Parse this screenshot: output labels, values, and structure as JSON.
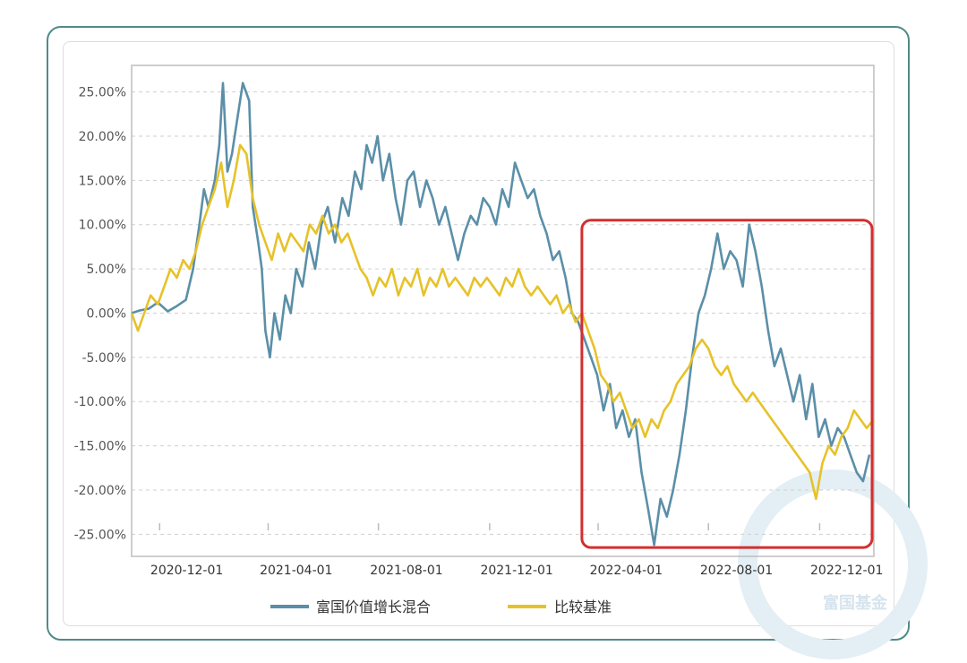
{
  "colors": {
    "fund": "#5b8fa8",
    "benchmark": "#e6c229",
    "highlight": "#d32f2f",
    "frame": "#4f8a8b"
  },
  "watermark": {
    "text": "富国基金"
  },
  "chart_data": {
    "type": "line",
    "title": "",
    "xlabel": "",
    "ylabel": "",
    "ylim": [
      -27.5,
      28
    ],
    "yticks": [
      25,
      20,
      15,
      10,
      5,
      0,
      -5,
      -10,
      -15,
      -20,
      -25
    ],
    "ytick_labels": [
      "25.00%",
      "20.00%",
      "15.00%",
      "10.00%",
      "5.00%",
      "0.00%",
      "-5.00%",
      "-10.00%",
      "-15.00%",
      "-20.00%",
      "-25.00%"
    ],
    "xlim": [
      "2020-10-01",
      "2022-12-31"
    ],
    "xticks": [
      "2020-12-01",
      "2021-04-01",
      "2021-08-01",
      "2021-12-01",
      "2022-04-01",
      "2022-08-01",
      "2022-12-01"
    ],
    "legend_position": "bottom",
    "grid": true,
    "highlight_region": {
      "x_start": "2022-02-15",
      "x_end": "2022-12-31",
      "y_min": -26.5,
      "y_max": 10.5
    },
    "series": [
      {
        "name": "富国价值增长混合",
        "color": "#5b8fa8",
        "points": [
          [
            "2020-10-01",
            0
          ],
          [
            "2020-10-10",
            0.3
          ],
          [
            "2020-10-20",
            0.5
          ],
          [
            "2020-10-30",
            1.2
          ],
          [
            "2020-11-10",
            0.2
          ],
          [
            "2020-11-20",
            0.8
          ],
          [
            "2020-11-30",
            1.5
          ],
          [
            "2020-12-08",
            5
          ],
          [
            "2020-12-15",
            10
          ],
          [
            "2020-12-20",
            14
          ],
          [
            "2020-12-25",
            12
          ],
          [
            "2021-01-01",
            15
          ],
          [
            "2021-01-06",
            19
          ],
          [
            "2021-01-10",
            26
          ],
          [
            "2021-01-15",
            16
          ],
          [
            "2021-01-20",
            18
          ],
          [
            "2021-01-26",
            22
          ],
          [
            "2021-02-01",
            26
          ],
          [
            "2021-02-08",
            24
          ],
          [
            "2021-02-12",
            12
          ],
          [
            "2021-02-18",
            8
          ],
          [
            "2021-02-22",
            5
          ],
          [
            "2021-02-26",
            -2
          ],
          [
            "2021-03-03",
            -5
          ],
          [
            "2021-03-08",
            0
          ],
          [
            "2021-03-14",
            -3
          ],
          [
            "2021-03-20",
            2
          ],
          [
            "2021-03-26",
            0
          ],
          [
            "2021-04-01",
            5
          ],
          [
            "2021-04-08",
            3
          ],
          [
            "2021-04-15",
            8
          ],
          [
            "2021-04-22",
            5
          ],
          [
            "2021-04-29",
            10
          ],
          [
            "2021-05-06",
            12
          ],
          [
            "2021-05-14",
            8
          ],
          [
            "2021-05-22",
            13
          ],
          [
            "2021-05-29",
            11
          ],
          [
            "2021-06-05",
            16
          ],
          [
            "2021-06-12",
            14
          ],
          [
            "2021-06-18",
            19
          ],
          [
            "2021-06-24",
            17
          ],
          [
            "2021-06-30",
            20
          ],
          [
            "2021-07-06",
            15
          ],
          [
            "2021-07-13",
            18
          ],
          [
            "2021-07-20",
            13
          ],
          [
            "2021-07-26",
            10
          ],
          [
            "2021-08-02",
            15
          ],
          [
            "2021-08-09",
            16
          ],
          [
            "2021-08-16",
            12
          ],
          [
            "2021-08-23",
            15
          ],
          [
            "2021-08-30",
            13
          ],
          [
            "2021-09-06",
            10
          ],
          [
            "2021-09-13",
            12
          ],
          [
            "2021-09-20",
            9
          ],
          [
            "2021-09-27",
            6
          ],
          [
            "2021-10-04",
            9
          ],
          [
            "2021-10-11",
            11
          ],
          [
            "2021-10-18",
            10
          ],
          [
            "2021-10-25",
            13
          ],
          [
            "2021-11-01",
            12
          ],
          [
            "2021-11-08",
            10
          ],
          [
            "2021-11-15",
            14
          ],
          [
            "2021-11-22",
            12
          ],
          [
            "2021-11-29",
            17
          ],
          [
            "2021-12-06",
            15
          ],
          [
            "2021-12-13",
            13
          ],
          [
            "2021-12-20",
            14
          ],
          [
            "2021-12-27",
            11
          ],
          [
            "2022-01-03",
            9
          ],
          [
            "2022-01-10",
            6
          ],
          [
            "2022-01-17",
            7
          ],
          [
            "2022-01-24",
            4
          ],
          [
            "2022-01-31",
            0
          ],
          [
            "2022-02-07",
            -1
          ],
          [
            "2022-02-14",
            -3
          ],
          [
            "2022-02-21",
            -5
          ],
          [
            "2022-02-28",
            -7
          ],
          [
            "2022-03-07",
            -11
          ],
          [
            "2022-03-14",
            -8
          ],
          [
            "2022-03-21",
            -13
          ],
          [
            "2022-03-28",
            -11
          ],
          [
            "2022-04-04",
            -14
          ],
          [
            "2022-04-11",
            -12
          ],
          [
            "2022-04-18",
            -18
          ],
          [
            "2022-04-25",
            -22
          ],
          [
            "2022-05-02",
            -26.2
          ],
          [
            "2022-05-09",
            -21
          ],
          [
            "2022-05-16",
            -23
          ],
          [
            "2022-05-23",
            -20
          ],
          [
            "2022-05-30",
            -16
          ],
          [
            "2022-06-06",
            -11
          ],
          [
            "2022-06-13",
            -5
          ],
          [
            "2022-06-20",
            0
          ],
          [
            "2022-06-27",
            2
          ],
          [
            "2022-07-04",
            5
          ],
          [
            "2022-07-11",
            9
          ],
          [
            "2022-07-18",
            5
          ],
          [
            "2022-07-25",
            7
          ],
          [
            "2022-08-01",
            6
          ],
          [
            "2022-08-08",
            3
          ],
          [
            "2022-08-15",
            10
          ],
          [
            "2022-08-22",
            7
          ],
          [
            "2022-08-29",
            3
          ],
          [
            "2022-09-05",
            -2
          ],
          [
            "2022-09-12",
            -6
          ],
          [
            "2022-09-19",
            -4
          ],
          [
            "2022-09-26",
            -7
          ],
          [
            "2022-10-03",
            -10
          ],
          [
            "2022-10-10",
            -7
          ],
          [
            "2022-10-17",
            -12
          ],
          [
            "2022-10-24",
            -8
          ],
          [
            "2022-10-31",
            -14
          ],
          [
            "2022-11-07",
            -12
          ],
          [
            "2022-11-14",
            -15
          ],
          [
            "2022-11-21",
            -13
          ],
          [
            "2022-11-28",
            -14
          ],
          [
            "2022-12-05",
            -16
          ],
          [
            "2022-12-12",
            -18
          ],
          [
            "2022-12-19",
            -19
          ],
          [
            "2022-12-26",
            -16
          ]
        ]
      },
      {
        "name": "比较基准",
        "color": "#e6c229",
        "points": [
          [
            "2020-10-01",
            0
          ],
          [
            "2020-10-08",
            -2
          ],
          [
            "2020-10-15",
            0
          ],
          [
            "2020-10-22",
            2
          ],
          [
            "2020-10-30",
            1
          ],
          [
            "2020-11-06",
            3
          ],
          [
            "2020-11-13",
            5
          ],
          [
            "2020-11-20",
            4
          ],
          [
            "2020-11-27",
            6
          ],
          [
            "2020-12-04",
            5
          ],
          [
            "2020-12-11",
            7
          ],
          [
            "2020-12-18",
            10
          ],
          [
            "2020-12-25",
            12
          ],
          [
            "2021-01-01",
            14
          ],
          [
            "2021-01-08",
            17
          ],
          [
            "2021-01-15",
            12
          ],
          [
            "2021-01-22",
            15
          ],
          [
            "2021-01-29",
            19
          ],
          [
            "2021-02-05",
            18
          ],
          [
            "2021-02-12",
            13
          ],
          [
            "2021-02-19",
            10
          ],
          [
            "2021-02-26",
            8
          ],
          [
            "2021-03-05",
            6
          ],
          [
            "2021-03-12",
            9
          ],
          [
            "2021-03-19",
            7
          ],
          [
            "2021-03-26",
            9
          ],
          [
            "2021-04-02",
            8
          ],
          [
            "2021-04-09",
            7
          ],
          [
            "2021-04-16",
            10
          ],
          [
            "2021-04-23",
            9
          ],
          [
            "2021-04-30",
            11
          ],
          [
            "2021-05-07",
            9
          ],
          [
            "2021-05-14",
            10
          ],
          [
            "2021-05-21",
            8
          ],
          [
            "2021-05-28",
            9
          ],
          [
            "2021-06-04",
            7
          ],
          [
            "2021-06-11",
            5
          ],
          [
            "2021-06-18",
            4
          ],
          [
            "2021-06-25",
            2
          ],
          [
            "2021-07-02",
            4
          ],
          [
            "2021-07-09",
            3
          ],
          [
            "2021-07-16",
            5
          ],
          [
            "2021-07-23",
            2
          ],
          [
            "2021-07-30",
            4
          ],
          [
            "2021-08-06",
            3
          ],
          [
            "2021-08-13",
            5
          ],
          [
            "2021-08-20",
            2
          ],
          [
            "2021-08-27",
            4
          ],
          [
            "2021-09-03",
            3
          ],
          [
            "2021-09-10",
            5
          ],
          [
            "2021-09-17",
            3
          ],
          [
            "2021-09-24",
            4
          ],
          [
            "2021-10-01",
            3
          ],
          [
            "2021-10-08",
            2
          ],
          [
            "2021-10-15",
            4
          ],
          [
            "2021-10-22",
            3
          ],
          [
            "2021-10-29",
            4
          ],
          [
            "2021-11-05",
            3
          ],
          [
            "2021-11-12",
            2
          ],
          [
            "2021-11-19",
            4
          ],
          [
            "2021-11-26",
            3
          ],
          [
            "2021-12-03",
            5
          ],
          [
            "2021-12-10",
            3
          ],
          [
            "2021-12-17",
            2
          ],
          [
            "2021-12-24",
            3
          ],
          [
            "2021-12-31",
            2
          ],
          [
            "2022-01-07",
            1
          ],
          [
            "2022-01-14",
            2
          ],
          [
            "2022-01-21",
            0
          ],
          [
            "2022-01-28",
            1
          ],
          [
            "2022-02-04",
            -1
          ],
          [
            "2022-02-11",
            0
          ],
          [
            "2022-02-18",
            -2
          ],
          [
            "2022-02-25",
            -4
          ],
          [
            "2022-03-04",
            -7
          ],
          [
            "2022-03-11",
            -8
          ],
          [
            "2022-03-18",
            -10
          ],
          [
            "2022-03-25",
            -9
          ],
          [
            "2022-04-01",
            -11
          ],
          [
            "2022-04-08",
            -13
          ],
          [
            "2022-04-15",
            -12
          ],
          [
            "2022-04-22",
            -14
          ],
          [
            "2022-04-29",
            -12
          ],
          [
            "2022-05-06",
            -13
          ],
          [
            "2022-05-13",
            -11
          ],
          [
            "2022-05-20",
            -10
          ],
          [
            "2022-05-27",
            -8
          ],
          [
            "2022-06-03",
            -7
          ],
          [
            "2022-06-10",
            -6
          ],
          [
            "2022-06-17",
            -4
          ],
          [
            "2022-06-24",
            -3
          ],
          [
            "2022-07-01",
            -4
          ],
          [
            "2022-07-08",
            -6
          ],
          [
            "2022-07-15",
            -7
          ],
          [
            "2022-07-22",
            -6
          ],
          [
            "2022-07-29",
            -8
          ],
          [
            "2022-08-05",
            -9
          ],
          [
            "2022-08-12",
            -10
          ],
          [
            "2022-08-19",
            -9
          ],
          [
            "2022-08-26",
            -10
          ],
          [
            "2022-09-02",
            -11
          ],
          [
            "2022-09-09",
            -12
          ],
          [
            "2022-09-16",
            -13
          ],
          [
            "2022-09-23",
            -14
          ],
          [
            "2022-09-30",
            -15
          ],
          [
            "2022-10-07",
            -16
          ],
          [
            "2022-10-14",
            -17
          ],
          [
            "2022-10-21",
            -18
          ],
          [
            "2022-10-28",
            -21
          ],
          [
            "2022-11-04",
            -17
          ],
          [
            "2022-11-11",
            -15
          ],
          [
            "2022-11-18",
            -16
          ],
          [
            "2022-11-25",
            -14
          ],
          [
            "2022-12-02",
            -13
          ],
          [
            "2022-12-09",
            -11
          ],
          [
            "2022-12-16",
            -12
          ],
          [
            "2022-12-23",
            -13
          ],
          [
            "2022-12-31",
            -12
          ]
        ]
      }
    ]
  }
}
